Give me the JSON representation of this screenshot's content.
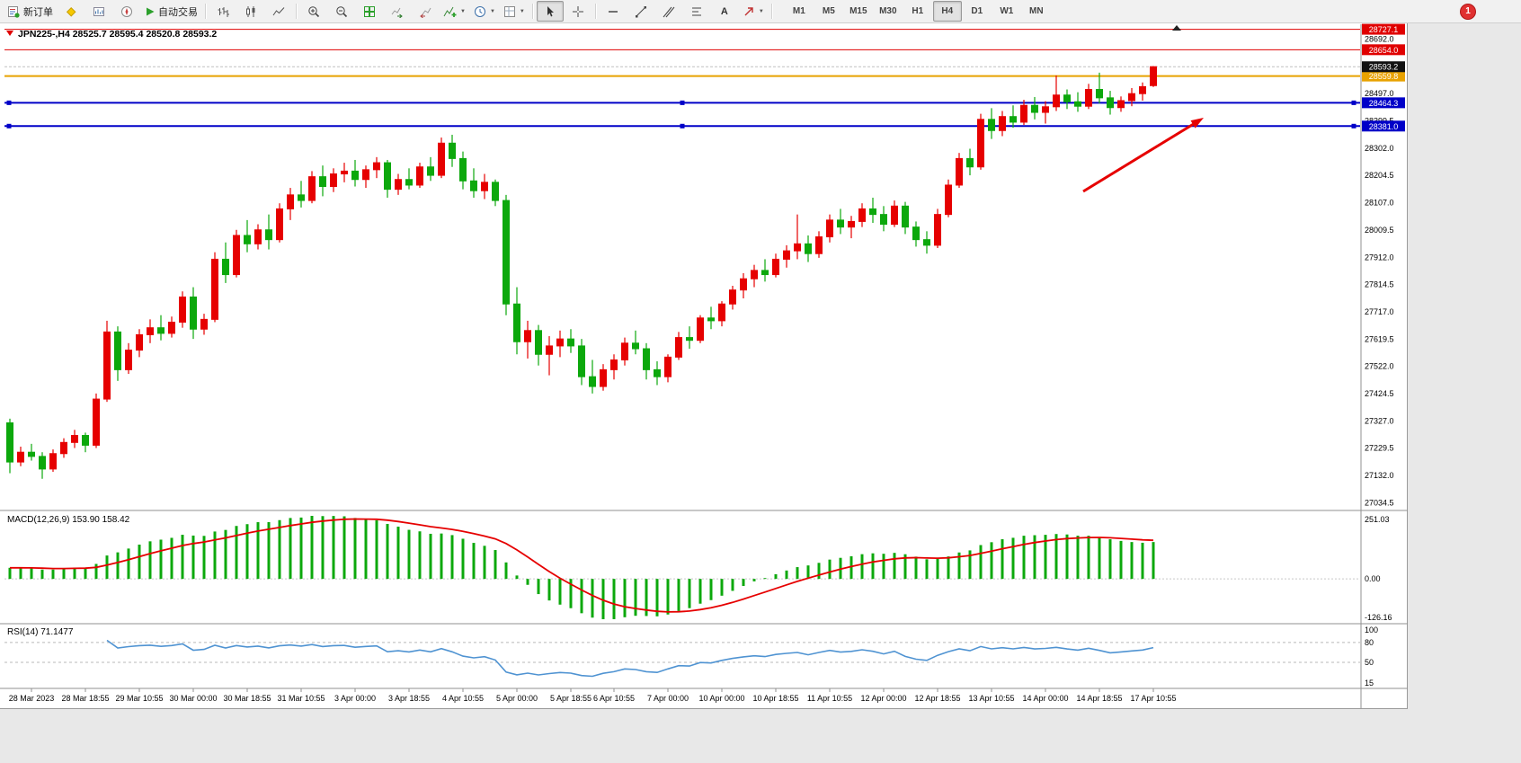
{
  "toolbar": {
    "new_order_label": "新订单",
    "autotrading_label": "自动交易",
    "timeframes": [
      "M1",
      "M5",
      "M15",
      "M30",
      "H1",
      "H4",
      "D1",
      "W1",
      "MN"
    ],
    "active_timeframe": "H4",
    "active_tool": "cursor",
    "notification_count": "1",
    "icons": [
      "new-order",
      "metaeditor",
      "market-watch",
      "navigator",
      "autotrading",
      "bar-chart",
      "candlestick",
      "line-chart",
      "zoom-in",
      "zoom-out",
      "tile-windows",
      "auto-scroll",
      "chart-shift",
      "indicators",
      "periods",
      "templates",
      "cursor",
      "crosshair",
      "horizontal-line",
      "trendline",
      "channel",
      "fibonacci",
      "text",
      "arrows",
      "notification"
    ]
  },
  "chart_data": {
    "type": "candlestick",
    "symbol": "JPN225-",
    "timeframe": "H4",
    "title": "JPN225-,H4 28525.7 28595.4 28520.8 28593.2",
    "ohlc": {
      "open": 28525.7,
      "high": 28595.4,
      "low": 28520.8,
      "close": 28593.2
    },
    "y_range": [
      27010,
      28745
    ],
    "price_axis_labels": [
      "28692.0",
      "28594.5",
      "28497.0",
      "28399.5",
      "28302.0",
      "28204.5",
      "28107.0",
      "28009.5",
      "27912.0",
      "27814.5",
      "27717.0",
      "27619.5",
      "27522.0",
      "27424.5",
      "27327.0",
      "27229.5",
      "27132.0",
      "27034.5"
    ],
    "levels": [
      {
        "name": "resistance-line-1",
        "price": 28727.1,
        "label": "28727.1",
        "color": "#e00000",
        "width": 1
      },
      {
        "name": "resistance-line-2",
        "price": 28654.0,
        "label": "28654.0",
        "color": "#e00000",
        "width": 1
      },
      {
        "name": "bid-price",
        "price": 28593.2,
        "label": "28593.2",
        "color": "#111111",
        "width": 1,
        "style": "bid"
      },
      {
        "name": "pivot-line-orange",
        "price": 28559.8,
        "label": "28559.8",
        "color": "#e8a200",
        "width": 2
      },
      {
        "name": "support-line-1",
        "price": 28464.3,
        "label": "28464.3",
        "color": "#0000c8",
        "width": 2,
        "handles": true
      },
      {
        "name": "support-line-2",
        "price": 28381.0,
        "label": "28381.0",
        "color": "#0000c8",
        "width": 2,
        "handles": true
      }
    ],
    "time_labels": [
      "28 Mar 2023",
      "28 Mar 18:55",
      "29 Mar 10:55",
      "30 Mar 00:00",
      "30 Mar 18:55",
      "31 Mar 10:55",
      "3 Apr 00:00",
      "3 Apr 18:55",
      "4 Apr 10:55",
      "5 Apr 00:00",
      "5 Apr 18:55",
      "6 Apr 10:55",
      "7 Apr 00:00",
      "10 Apr 00:00",
      "10 Apr 18:55",
      "11 Apr 10:55",
      "12 Apr 00:00",
      "12 Apr 18:55",
      "13 Apr 10:55",
      "14 Apr 00:00",
      "14 Apr 18:55",
      "17 Apr 10:55"
    ],
    "candle_colors": {
      "up": "#e60000",
      "down": "#0ca80c"
    },
    "candles": [
      [
        27320,
        27335,
        27140,
        27180
      ],
      [
        27180,
        27235,
        27165,
        27215
      ],
      [
        27215,
        27245,
        27185,
        27200
      ],
      [
        27200,
        27215,
        27120,
        27155
      ],
      [
        27155,
        27225,
        27145,
        27210
      ],
      [
        27210,
        27265,
        27195,
        27250
      ],
      [
        27250,
        27295,
        27230,
        27275
      ],
      [
        27275,
        27285,
        27215,
        27240
      ],
      [
        27240,
        27425,
        27230,
        27405
      ],
      [
        27405,
        27685,
        27395,
        27645
      ],
      [
        27645,
        27665,
        27470,
        27510
      ],
      [
        27510,
        27605,
        27495,
        27580
      ],
      [
        27580,
        27655,
        27555,
        27635
      ],
      [
        27635,
        27690,
        27605,
        27660
      ],
      [
        27660,
        27705,
        27615,
        27640
      ],
      [
        27640,
        27700,
        27625,
        27680
      ],
      [
        27680,
        27790,
        27660,
        27770
      ],
      [
        27770,
        27805,
        27620,
        27655
      ],
      [
        27655,
        27710,
        27635,
        27690
      ],
      [
        27690,
        27930,
        27680,
        27905
      ],
      [
        27905,
        27965,
        27820,
        27850
      ],
      [
        27850,
        28010,
        27840,
        27990
      ],
      [
        27990,
        28045,
        27930,
        27960
      ],
      [
        27960,
        28030,
        27940,
        28010
      ],
      [
        28010,
        28065,
        27940,
        27975
      ],
      [
        27975,
        28105,
        27965,
        28085
      ],
      [
        28085,
        28160,
        28045,
        28135
      ],
      [
        28135,
        28185,
        28090,
        28115
      ],
      [
        28115,
        28220,
        28105,
        28200
      ],
      [
        28200,
        28240,
        28130,
        28165
      ],
      [
        28165,
        28230,
        28145,
        28210
      ],
      [
        28210,
        28250,
        28180,
        28220
      ],
      [
        28220,
        28260,
        28165,
        28190
      ],
      [
        28190,
        28240,
        28160,
        28225
      ],
      [
        28225,
        28270,
        28195,
        28250
      ],
      [
        28250,
        28260,
        28125,
        28155
      ],
      [
        28155,
        28210,
        28135,
        28190
      ],
      [
        28190,
        28230,
        28155,
        28170
      ],
      [
        28170,
        28250,
        28160,
        28235
      ],
      [
        28235,
        28270,
        28185,
        28205
      ],
      [
        28205,
        28340,
        28195,
        28320
      ],
      [
        28320,
        28350,
        28235,
        28265
      ],
      [
        28265,
        28290,
        28155,
        28185
      ],
      [
        28185,
        28230,
        28125,
        28150
      ],
      [
        28150,
        28210,
        28120,
        28180
      ],
      [
        28180,
        28190,
        28095,
        28115
      ],
      [
        28115,
        28135,
        27705,
        27745
      ],
      [
        27745,
        27805,
        27565,
        27610
      ],
      [
        27610,
        27685,
        27550,
        27650
      ],
      [
        27650,
        27670,
        27525,
        27565
      ],
      [
        27565,
        27630,
        27490,
        27595
      ],
      [
        27595,
        27650,
        27555,
        27620
      ],
      [
        27620,
        27655,
        27570,
        27595
      ],
      [
        27595,
        27620,
        27455,
        27485
      ],
      [
        27485,
        27545,
        27425,
        27450
      ],
      [
        27450,
        27530,
        27435,
        27510
      ],
      [
        27510,
        27565,
        27475,
        27545
      ],
      [
        27545,
        27625,
        27525,
        27605
      ],
      [
        27605,
        27650,
        27565,
        27585
      ],
      [
        27585,
        27605,
        27475,
        27510
      ],
      [
        27510,
        27540,
        27455,
        27485
      ],
      [
        27485,
        27565,
        27465,
        27555
      ],
      [
        27555,
        27645,
        27545,
        27625
      ],
      [
        27625,
        27665,
        27585,
        27615
      ],
      [
        27615,
        27705,
        27605,
        27695
      ],
      [
        27695,
        27735,
        27655,
        27685
      ],
      [
        27685,
        27755,
        27665,
        27745
      ],
      [
        27745,
        27810,
        27725,
        27795
      ],
      [
        27795,
        27855,
        27765,
        27835
      ],
      [
        27835,
        27885,
        27805,
        27865
      ],
      [
        27865,
        27905,
        27825,
        27850
      ],
      [
        27850,
        27925,
        27840,
        27905
      ],
      [
        27905,
        27955,
        27875,
        27935
      ],
      [
        27935,
        28065,
        27905,
        27960
      ],
      [
        27960,
        27990,
        27895,
        27925
      ],
      [
        27925,
        28005,
        27910,
        27985
      ],
      [
        27985,
        28065,
        27965,
        28045
      ],
      [
        28045,
        28085,
        27995,
        28020
      ],
      [
        28020,
        28060,
        27980,
        28040
      ],
      [
        28040,
        28105,
        28020,
        28085
      ],
      [
        28085,
        28125,
        28035,
        28065
      ],
      [
        28065,
        28095,
        28005,
        28030
      ],
      [
        28030,
        28115,
        28020,
        28095
      ],
      [
        28095,
        28110,
        27995,
        28020
      ],
      [
        28020,
        28040,
        27950,
        27975
      ],
      [
        27975,
        28005,
        27925,
        27955
      ],
      [
        27955,
        28085,
        27945,
        28065
      ],
      [
        28065,
        28190,
        28055,
        28170
      ],
      [
        28170,
        28285,
        28160,
        28265
      ],
      [
        28265,
        28300,
        28205,
        28235
      ],
      [
        28235,
        28425,
        28225,
        28405
      ],
      [
        28405,
        28445,
        28335,
        28365
      ],
      [
        28365,
        28435,
        28345,
        28415
      ],
      [
        28415,
        28455,
        28375,
        28395
      ],
      [
        28395,
        28475,
        28385,
        28455
      ],
      [
        28455,
        28485,
        28405,
        28430
      ],
      [
        28430,
        28470,
        28390,
        28450
      ],
      [
        28450,
        28562,
        28435,
        28492
      ],
      [
        28492,
        28512,
        28442,
        28468
      ],
      [
        28468,
        28502,
        28432,
        28452
      ],
      [
        28452,
        28532,
        28442,
        28512
      ],
      [
        28512,
        28572,
        28462,
        28482
      ],
      [
        28482,
        28507,
        28422,
        28447
      ],
      [
        28447,
        28487,
        28432,
        28472
      ],
      [
        28472,
        28517,
        28452,
        28497
      ],
      [
        28497,
        28537,
        28472,
        28522
      ],
      [
        28525.7,
        28595.4,
        28520.8,
        28593.2
      ]
    ],
    "indicators": {
      "macd": {
        "label": "MACD(12,26,9) 153.90 158.42",
        "fast": 12,
        "slow": 26,
        "signal": 9,
        "value_main": 153.9,
        "value_signal": 158.42,
        "axis_labels": [
          "251.03",
          "0.00",
          "-126.16"
        ],
        "histogram_color": "#0ca80c",
        "signal_color": "#e60000"
      },
      "rsi": {
        "label": "RSI(14) 71.1477",
        "period": 14,
        "value": 71.1477,
        "axis_labels": [
          "100",
          "80",
          "50",
          "15"
        ],
        "levels": [
          80,
          50
        ],
        "line_color": "#4f93d2"
      }
    },
    "annotation": {
      "type": "arrow",
      "color": "#e60000",
      "from": [
        1205,
        213
      ],
      "to": [
        1331,
        136
      ]
    }
  }
}
